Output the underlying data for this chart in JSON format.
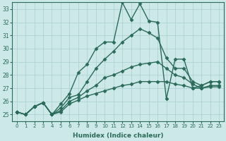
{
  "xlabel": "Humidex (Indice chaleur)",
  "background_color": "#cce8e8",
  "line_color": "#2a6b5a",
  "grid_color": "#aacfcf",
  "xlim": [
    -0.5,
    23.5
  ],
  "ylim": [
    24.5,
    33.5
  ],
  "yticks": [
    25,
    26,
    27,
    28,
    29,
    30,
    31,
    32,
    33
  ],
  "xticks": [
    0,
    1,
    2,
    3,
    4,
    5,
    6,
    7,
    8,
    9,
    10,
    11,
    12,
    13,
    14,
    15,
    16,
    17,
    18,
    19,
    20,
    21,
    22,
    23
  ],
  "series": [
    {
      "x": [
        0,
        1,
        2,
        3,
        4,
        5,
        6,
        7,
        8,
        9,
        10,
        11,
        12,
        13,
        14,
        15,
        16,
        17,
        18,
        19,
        20,
        21,
        22,
        23
      ],
      "y": [
        25.2,
        25.0,
        25.6,
        25.9,
        25.0,
        25.8,
        26.6,
        28.2,
        28.8,
        30.0,
        30.5,
        30.5,
        33.5,
        32.2,
        33.4,
        32.1,
        32.0,
        26.2,
        29.2,
        29.2,
        27.0,
        27.2,
        27.5,
        27.5
      ],
      "marker": "D",
      "markersize": 2.5,
      "linewidth": 1.0
    },
    {
      "x": [
        0,
        1,
        2,
        3,
        4,
        5,
        6,
        7,
        8,
        9,
        10,
        11,
        12,
        13,
        14,
        15,
        16,
        17,
        18,
        19,
        20,
        21,
        22,
        23
      ],
      "y": [
        25.2,
        25.0,
        25.6,
        25.9,
        25.0,
        25.5,
        26.3,
        26.5,
        27.5,
        28.5,
        29.2,
        29.8,
        30.5,
        31.0,
        31.5,
        31.2,
        30.8,
        29.3,
        28.5,
        28.5,
        27.5,
        27.2,
        27.5,
        27.5
      ],
      "marker": "D",
      "markersize": 2.5,
      "linewidth": 1.0
    },
    {
      "x": [
        0,
        1,
        2,
        3,
        4,
        5,
        6,
        7,
        8,
        9,
        10,
        11,
        12,
        13,
        14,
        15,
        16,
        17,
        18,
        19,
        20,
        21,
        22,
        23
      ],
      "y": [
        25.2,
        25.0,
        25.6,
        25.9,
        25.0,
        25.3,
        26.0,
        26.3,
        26.8,
        27.2,
        27.8,
        28.0,
        28.3,
        28.6,
        28.8,
        28.9,
        29.0,
        28.5,
        28.0,
        27.8,
        27.3,
        27.0,
        27.2,
        27.2
      ],
      "marker": "D",
      "markersize": 2.5,
      "linewidth": 1.0
    },
    {
      "x": [
        0,
        1,
        2,
        3,
        4,
        5,
        6,
        7,
        8,
        9,
        10,
        11,
        12,
        13,
        14,
        15,
        16,
        17,
        18,
        19,
        20,
        21,
        22,
        23
      ],
      "y": [
        25.2,
        25.0,
        25.6,
        25.9,
        25.0,
        25.2,
        25.8,
        26.1,
        26.4,
        26.6,
        26.8,
        27.0,
        27.2,
        27.3,
        27.5,
        27.5,
        27.5,
        27.5,
        27.3,
        27.2,
        27.0,
        27.0,
        27.1,
        27.1
      ],
      "marker": "D",
      "markersize": 2.5,
      "linewidth": 1.0
    }
  ]
}
